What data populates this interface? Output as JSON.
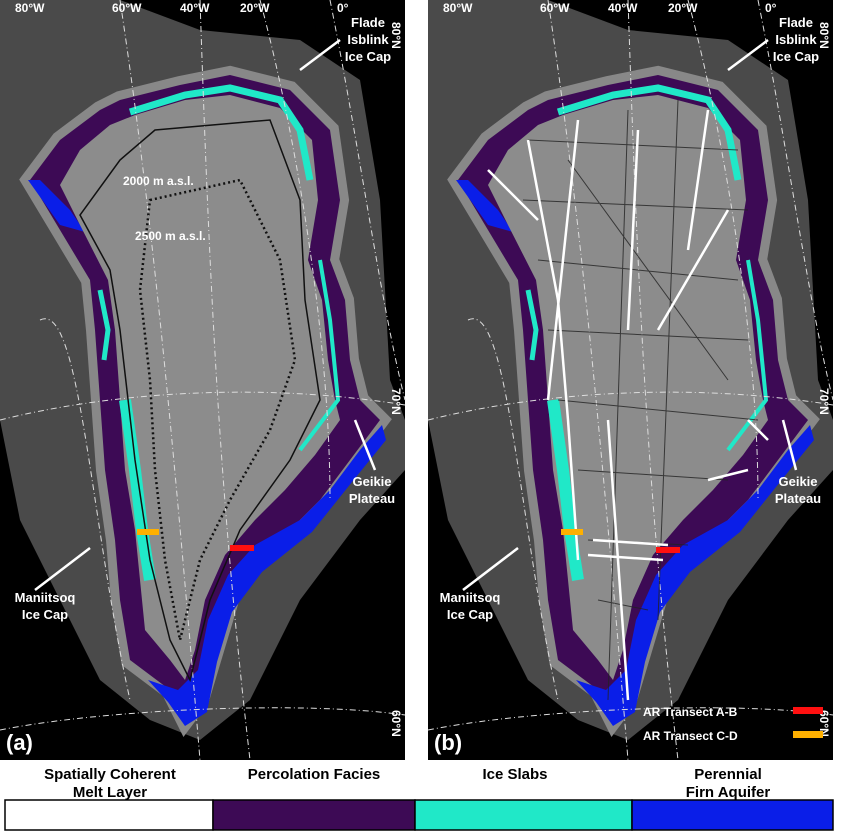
{
  "panels": [
    {
      "label": "(a)",
      "longitudes": [
        "80°W",
        "60°W",
        "40°W",
        "20°W",
        "0°"
      ],
      "latitudes": [
        "80°N",
        "70°N",
        "60°N"
      ],
      "places": {
        "flade": [
          "Flade",
          "Isblink",
          "Ice Cap"
        ],
        "geikie": [
          "Geikie",
          "Plateau"
        ],
        "maniitsoq": [
          "Maniitsoq",
          "Ice Cap"
        ]
      },
      "contours": [
        "2000 m a.s.l.",
        "2500 m a.s.l."
      ]
    },
    {
      "label": "(b)",
      "longitudes": [
        "80°W",
        "60°W",
        "40°W",
        "20°W",
        "0°"
      ],
      "latitudes": [
        "80°N",
        "70°N",
        "60°N"
      ],
      "places": {
        "flade": [
          "Flade",
          "Isblink",
          "Ice Cap"
        ],
        "geikie": [
          "Geikie",
          "Plateau"
        ],
        "maniitsoq": [
          "Maniitsoq",
          "Ice Cap"
        ]
      },
      "transects": [
        {
          "name": "AR Transect A-B",
          "color": "#ff1010"
        },
        {
          "name": "AR Transect C-D",
          "color": "#ffb000"
        }
      ]
    }
  ],
  "legend": [
    {
      "lines": [
        "Spatially Coherent",
        "Melt Layer"
      ],
      "color": "#ffffff"
    },
    {
      "lines": [
        "Percolation Facies"
      ],
      "color": "#3d0a55"
    },
    {
      "lines": [
        "Ice Slabs"
      ],
      "color": "#20e8c8"
    },
    {
      "lines": [
        "Perennial",
        "Firn Aquifer"
      ],
      "color": "#0a1ee8"
    }
  ]
}
